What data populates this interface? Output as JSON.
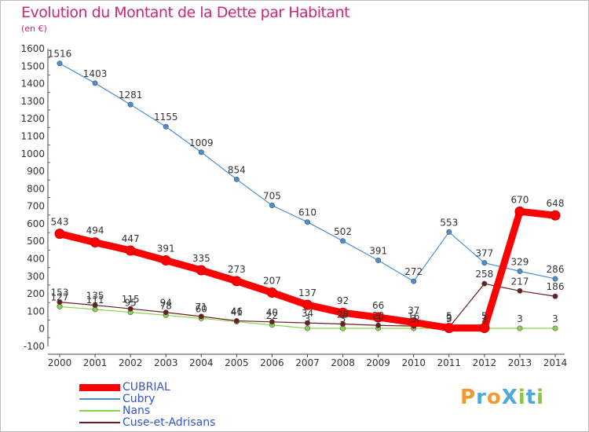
{
  "title": "Evolution du Montant de la Dette par Habitant",
  "unit": "(en €)",
  "logo": {
    "text": "ProXiti",
    "letters": [
      {
        "ch": "P",
        "color": "#f29a2e"
      },
      {
        "ch": "r",
        "color": "#4ea8dd"
      },
      {
        "ch": "o",
        "color": "#f29a2e"
      },
      {
        "ch": "X",
        "color": "#4ea8dd"
      },
      {
        "ch": "i",
        "color": "#8cc63f"
      },
      {
        "ch": "t",
        "color": "#4ea8dd"
      },
      {
        "ch": "i",
        "color": "#8cc63f"
      }
    ]
  },
  "chart_data": {
    "type": "line",
    "title": "Evolution du Montant de la Dette par Habitant",
    "ylabel": "(en €)",
    "xlabel": "",
    "x": [
      "2000",
      "2001",
      "2002",
      "2003",
      "2004",
      "2005",
      "2006",
      "2007",
      "2008",
      "2009",
      "2010",
      "2011",
      "2012",
      "2013",
      "2014"
    ],
    "ylim": [
      -100,
      1600
    ],
    "yticks": [
      -100,
      0,
      100,
      200,
      300,
      400,
      500,
      600,
      700,
      800,
      900,
      1000,
      1100,
      1200,
      1300,
      1400,
      1500,
      1600
    ],
    "grid": false,
    "legend": "bottom-left",
    "series": [
      {
        "name": "CUBRIAL",
        "color": "#ff0000",
        "width": "thick",
        "values": [
          543,
          494,
          447,
          391,
          335,
          273,
          207,
          137,
          92,
          66,
          37,
          5,
          5,
          670,
          648
        ]
      },
      {
        "name": "Cubry",
        "color": "#4a8fd0",
        "width": "thin",
        "values": [
          1516,
          1403,
          1281,
          1155,
          1009,
          854,
          705,
          610,
          502,
          391,
          272,
          553,
          377,
          329,
          286
        ]
      },
      {
        "name": "Nans",
        "color": "#8ad24a",
        "width": "thin",
        "values": [
          127,
          111,
          95,
          78,
          60,
          41,
          22,
          3,
          3,
          3,
          3,
          3,
          3,
          3,
          3
        ]
      },
      {
        "name": "Cuse-et-Adrisans",
        "color": "#6b1e1e",
        "width": "thin",
        "values": [
          153,
          135,
          115,
          94,
          71,
          46,
          40,
          34,
          28,
          20,
          16,
          9,
          258,
          217,
          186
        ]
      }
    ]
  }
}
